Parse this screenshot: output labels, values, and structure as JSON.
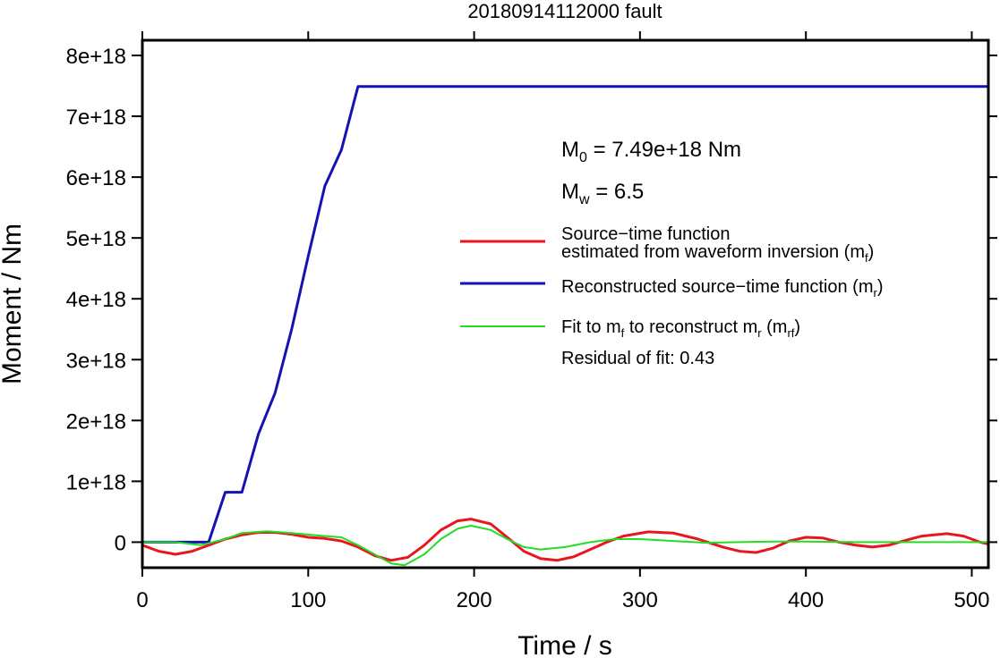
{
  "chart_data": {
    "type": "line",
    "title": "20180914112000 fault",
    "xlabel": "Time / s",
    "ylabel": "Moment / Nm",
    "xlim": [
      0,
      510
    ],
    "ylim": [
      -4.2e+17,
      8.25e+18
    ],
    "xticks": [
      0,
      100,
      200,
      300,
      400,
      500
    ],
    "xtick_labels": [
      "0",
      "100",
      "200",
      "300",
      "400",
      "500"
    ],
    "yticks": [
      0,
      1e+18,
      2e+18,
      3e+18,
      4e+18,
      5e+18,
      6e+18,
      7e+18,
      8e+18
    ],
    "ytick_labels": [
      "0",
      "1e+18",
      "2e+18",
      "3e+18",
      "4e+18",
      "5e+18",
      "6e+18",
      "7e+18",
      "8e+18"
    ],
    "grid": false,
    "legend_position": "right",
    "annotations": {
      "m0": {
        "base": "M",
        "sub": "0",
        "rest": " = 7.49e+18 Nm"
      },
      "mw": {
        "base": "M",
        "sub": "w",
        "rest": " = 6.5"
      },
      "residual": "Residual of fit: 0.43"
    },
    "series": [
      {
        "name": "Source−time function estimated from waveform inversion (mf)",
        "legend_line1": "Source−time function",
        "legend_line2": {
          "pre": "estimated from waveform inversion (m",
          "sub": "f",
          "post": ")"
        },
        "color": "#e8161f",
        "x": [
          0,
          10,
          20,
          30,
          40,
          50,
          60,
          70,
          80,
          90,
          100,
          110,
          120,
          130,
          140,
          150,
          160,
          170,
          180,
          190,
          198,
          210,
          220,
          230,
          240,
          250,
          260,
          270,
          280,
          290,
          305,
          320,
          335,
          350,
          360,
          370,
          380,
          390,
          400,
          410,
          420,
          430,
          440,
          450,
          460,
          470,
          485,
          495,
          505,
          510
        ],
        "y": [
          -5e+16,
          -1.5e+17,
          -2e+17,
          -1.5e+17,
          -5e+16,
          5e+16,
          1.2e+17,
          1.6e+17,
          1.6e+17,
          1.3e+17,
          8e+16,
          6e+16,
          2e+16,
          -8e+16,
          -2.2e+17,
          -3e+17,
          -2.5e+17,
          -5e+16,
          2e+17,
          3.5e+17,
          3.8e+17,
          3e+17,
          8e+16,
          -1.5e+17,
          -2.7e+17,
          -3e+17,
          -2.4e+17,
          -1.2e+17,
          0.0,
          1e+17,
          1.7e+17,
          1.5e+17,
          5e+16,
          -8e+16,
          -1.5e+17,
          -1.7e+17,
          -1e+17,
          2e+16,
          8e+16,
          7e+16,
          0.0,
          -5e+16,
          -8e+16,
          -5e+16,
          3e+16,
          1e+17,
          1.4e+17,
          1e+17,
          0.0,
          -3e+16
        ]
      },
      {
        "name": "Reconstructed source−time function (mr)",
        "legend": {
          "pre": "Reconstructed source−time function (m",
          "sub": "r",
          "post": ")"
        },
        "color": "#1512b4",
        "x": [
          0,
          40,
          50,
          60,
          70,
          80,
          90,
          100,
          110,
          120,
          130,
          510
        ],
        "y": [
          0,
          0,
          8.2e+17,
          8.2e+17,
          1.78e+18,
          2.45e+18,
          3.5e+18,
          4.7e+18,
          5.85e+18,
          6.45e+18,
          7.49e+18,
          7.49e+18
        ]
      },
      {
        "name": "Fit to mf to reconstruct mr (mrf)",
        "legend": {
          "pre1": "Fit to m",
          "sub1": "f",
          "mid": " to reconstruct m",
          "sub2": "r",
          "mid2": " (m",
          "sub3": "rf",
          "post": ")"
        },
        "color": "#22dd22",
        "x": [
          0,
          20,
          35,
          50,
          60,
          75,
          90,
          110,
          120,
          130,
          140,
          150,
          158,
          170,
          180,
          190,
          198,
          210,
          220,
          230,
          240,
          255,
          270,
          285,
          300,
          320,
          340,
          360,
          380,
          400,
          430,
          460,
          490,
          510
        ],
        "y": [
          0,
          0,
          -5e+16,
          5e+16,
          1.5e+17,
          1.8e+17,
          1.5e+17,
          1e+17,
          8e+16,
          -5e+16,
          -2e+17,
          -3.5e+17,
          -3.8e+17,
          -2e+17,
          5e+16,
          2.2e+17,
          2.7e+17,
          2e+17,
          5e+16,
          -8e+16,
          -1.2e+17,
          -8e+16,
          0.0,
          5e+16,
          5e+16,
          2e+16,
          -1e+16,
          0.0,
          1e+16,
          1e+16,
          0.0,
          0.0,
          0.0,
          0.0
        ]
      }
    ]
  }
}
